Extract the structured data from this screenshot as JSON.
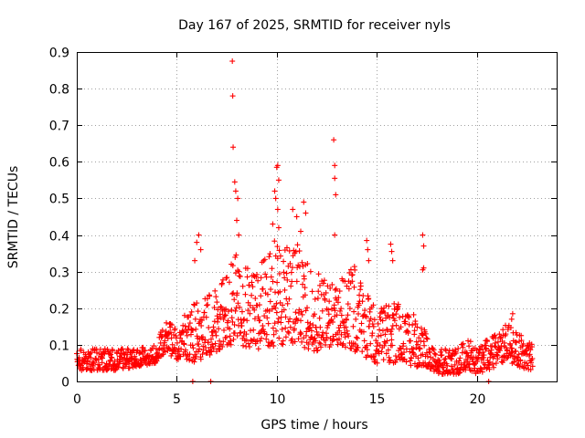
{
  "chart_data": {
    "type": "scatter",
    "title": "Day 167 of 2025, SRMTID for receiver nyls",
    "xlabel": "GPS time / hours",
    "ylabel": "SRMTID / TECUs",
    "xlim": [
      0,
      24
    ],
    "ylim": [
      0,
      0.9
    ],
    "xticks": [
      "0",
      "5",
      "10",
      "15",
      "20"
    ],
    "yticks": [
      "0",
      "0.1",
      "0.2",
      "0.3",
      "0.4",
      "0.5",
      "0.6",
      "0.7",
      "0.8",
      "0.9"
    ],
    "grid": true,
    "marker": "+",
    "color": "#ff0000",
    "series": [
      {
        "name": "SRMTID",
        "envelope": [
          [
            0,
            0.03,
            0.09
          ],
          [
            1,
            0.03,
            0.09
          ],
          [
            2,
            0.03,
            0.09
          ],
          [
            3,
            0.04,
            0.09
          ],
          [
            4,
            0.05,
            0.1
          ],
          [
            4.4,
            0.08,
            0.17
          ],
          [
            5,
            0.06,
            0.15
          ],
          [
            5.5,
            0.06,
            0.19
          ],
          [
            6,
            0.05,
            0.22
          ],
          [
            7,
            0.08,
            0.25
          ],
          [
            7.5,
            0.1,
            0.33
          ],
          [
            8,
            0.1,
            0.35
          ],
          [
            9,
            0.08,
            0.3
          ],
          [
            10,
            0.1,
            0.4
          ],
          [
            11,
            0.1,
            0.38
          ],
          [
            12,
            0.08,
            0.3
          ],
          [
            13,
            0.1,
            0.3
          ],
          [
            14,
            0.08,
            0.32
          ],
          [
            15,
            0.05,
            0.2
          ],
          [
            16,
            0.05,
            0.22
          ],
          [
            17,
            0.04,
            0.18
          ],
          [
            17.5,
            0.04,
            0.13
          ],
          [
            18,
            0.02,
            0.09
          ],
          [
            19,
            0.02,
            0.09
          ],
          [
            19.5,
            0.03,
            0.12
          ],
          [
            20,
            0.02,
            0.1
          ],
          [
            21,
            0.04,
            0.13
          ],
          [
            21.5,
            0.06,
            0.16
          ],
          [
            22,
            0.04,
            0.14
          ],
          [
            22.8,
            0.03,
            0.1
          ]
        ],
        "spikes": [
          [
            5.9,
            0.33
          ],
          [
            6.0,
            0.38
          ],
          [
            6.1,
            0.4
          ],
          [
            6.2,
            0.36
          ],
          [
            7.78,
            0.875
          ],
          [
            7.8,
            0.78
          ],
          [
            7.82,
            0.64
          ],
          [
            7.9,
            0.545
          ],
          [
            7.95,
            0.52
          ],
          [
            8.05,
            0.5
          ],
          [
            8.0,
            0.44
          ],
          [
            8.1,
            0.4
          ],
          [
            9.9,
            0.52
          ],
          [
            9.95,
            0.5
          ],
          [
            10.0,
            0.585
          ],
          [
            10.05,
            0.59
          ],
          [
            10.1,
            0.55
          ],
          [
            10.05,
            0.47
          ],
          [
            9.8,
            0.43
          ],
          [
            10.1,
            0.42
          ],
          [
            10.8,
            0.47
          ],
          [
            11.0,
            0.45
          ],
          [
            11.35,
            0.49
          ],
          [
            11.45,
            0.46
          ],
          [
            11.2,
            0.41
          ],
          [
            12.85,
            0.66
          ],
          [
            12.9,
            0.59
          ],
          [
            12.9,
            0.555
          ],
          [
            12.95,
            0.51
          ],
          [
            12.9,
            0.4
          ],
          [
            14.5,
            0.385
          ],
          [
            14.55,
            0.36
          ],
          [
            14.6,
            0.33
          ],
          [
            15.7,
            0.375
          ],
          [
            15.75,
            0.355
          ],
          [
            15.8,
            0.33
          ],
          [
            17.3,
            0.4
          ],
          [
            17.35,
            0.37
          ],
          [
            17.3,
            0.305
          ],
          [
            17.35,
            0.31
          ],
          [
            21.8,
            0.185
          ],
          [
            21.75,
            0.17
          ]
        ],
        "zero_markers": [
          5.8,
          6.7,
          20.6
        ]
      }
    ]
  }
}
